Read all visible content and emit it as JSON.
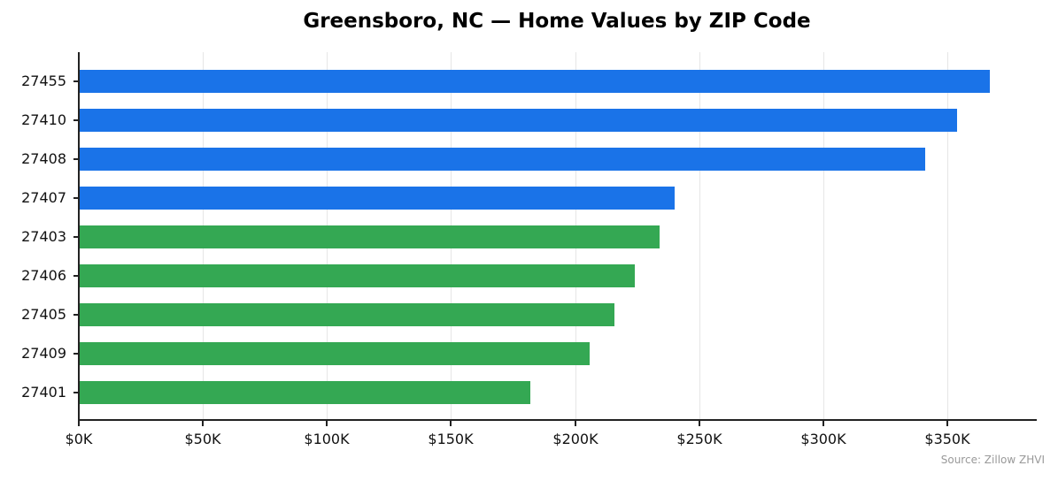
{
  "title": "Greensboro, NC — Home Values by ZIP Code",
  "source": "Source: Zillow ZHVI",
  "colors": {
    "top": "#1a73e8",
    "rest": "#34a853",
    "grid": "#e6e6e6",
    "axis": "#222222"
  },
  "chart_data": {
    "type": "bar",
    "orientation": "horizontal",
    "title": "Greensboro, NC — Home Values by ZIP Code",
    "xlabel": "",
    "ylabel": "",
    "categories": [
      "27455",
      "27410",
      "27408",
      "27407",
      "27403",
      "27406",
      "27405",
      "27409",
      "27401"
    ],
    "values": [
      367000,
      354000,
      341000,
      240000,
      234000,
      224000,
      216000,
      206000,
      182000
    ],
    "bar_colors": [
      "#1a73e8",
      "#1a73e8",
      "#1a73e8",
      "#1a73e8",
      "#34a853",
      "#34a853",
      "#34a853",
      "#34a853",
      "#34a853"
    ],
    "xlim": [
      0,
      386000
    ],
    "xticks": [
      0,
      50000,
      100000,
      150000,
      200000,
      250000,
      300000,
      350000
    ],
    "xtick_labels": [
      "$0K",
      "$50K",
      "$100K",
      "$150K",
      "$200K",
      "$250K",
      "$300K",
      "$350K"
    ],
    "grid": "x",
    "legend": null,
    "annotation": "Source: Zillow ZHVI"
  }
}
